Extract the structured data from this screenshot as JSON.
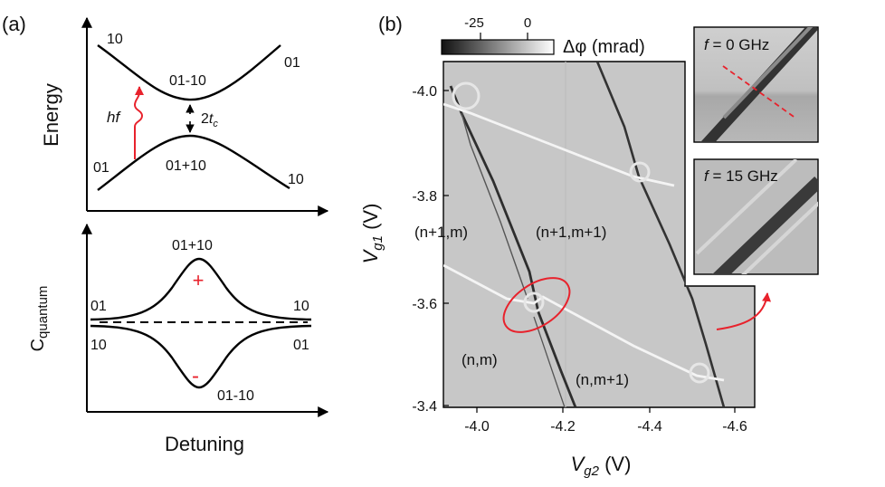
{
  "panel_a": {
    "label": "(a)",
    "top": {
      "ylabel": "Energy",
      "state_10_left": "10",
      "state_01_right": "01",
      "anti": "01-10",
      "bond": "01+10",
      "state_01_left": "01",
      "state_10_right": "10",
      "hf": "hf",
      "gap_2": "2",
      "gap_t": "t",
      "gap_c": "c"
    },
    "bottom": {
      "ylabel_main": "C",
      "ylabel_sub": "quantum",
      "xlabel": "Detuning",
      "top_peak": "01+10",
      "plus": "+",
      "minus": "-",
      "bottom_peak": "01-10",
      "left_top": "01",
      "left_bottom": "10",
      "right_top": "10",
      "right_bottom": "01"
    }
  },
  "panel_b": {
    "label": "(b)",
    "colorbar": {
      "tick1": "-25",
      "tick2": "0",
      "label": "Δφ (mrad)"
    },
    "yaxis": {
      "label_main": "V",
      "label_sub": "g1",
      "unit": " (V)",
      "ticks": [
        "-4.0",
        "-3.8",
        "-3.6",
        "-3.4"
      ]
    },
    "xaxis": {
      "label_main": "V",
      "label_sub": "g2",
      "unit": " (V)",
      "ticks": [
        "-4.0",
        "-4.2",
        "-4.4",
        "-4.6"
      ]
    },
    "regions": {
      "nplus1_m": "(n+1,m)",
      "nplus1_mplus1": "(n+1,m+1)",
      "n_m": "(n,m)",
      "n_mplus1": "(n,m+1)"
    },
    "inset1": {
      "f": "f",
      "rest": " = 0 GHz"
    },
    "inset2": {
      "f": "f",
      "rest": " = 15 GHz"
    }
  },
  "colors": {
    "red": "#e8222c",
    "background": "#c8c8c8",
    "line_dark": "#2a2a2a",
    "line_light": "#f4f4f4"
  }
}
